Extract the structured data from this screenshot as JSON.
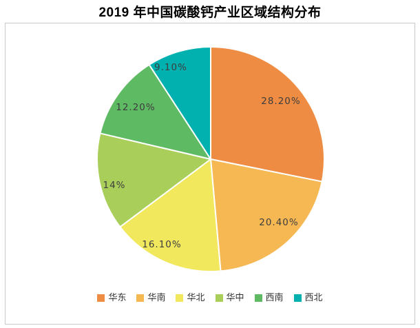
{
  "chart_data": {
    "type": "pie",
    "title": "2019 年中国碳酸钙产业区域结构分布",
    "categories": [
      "华东",
      "华南",
      "华北",
      "华中",
      "西南",
      "西北"
    ],
    "values": [
      28.2,
      20.4,
      16.1,
      14,
      12.2,
      9.1
    ],
    "value_labels": [
      "28.20%",
      "20.40%",
      "16.10%",
      "14%",
      "12.20%",
      "9.10%"
    ],
    "colors": [
      "#EF8C43",
      "#F6B853",
      "#F1E85D",
      "#A9CF5A",
      "#5FBA64",
      "#00B1B0"
    ],
    "start_angle_deg": 0,
    "direction": "clockwise",
    "legend_position": "bottom",
    "separator_color": "#ffffff",
    "frame_border_color": "#c9c9c9",
    "label_text_color": "#3d3d3d"
  }
}
